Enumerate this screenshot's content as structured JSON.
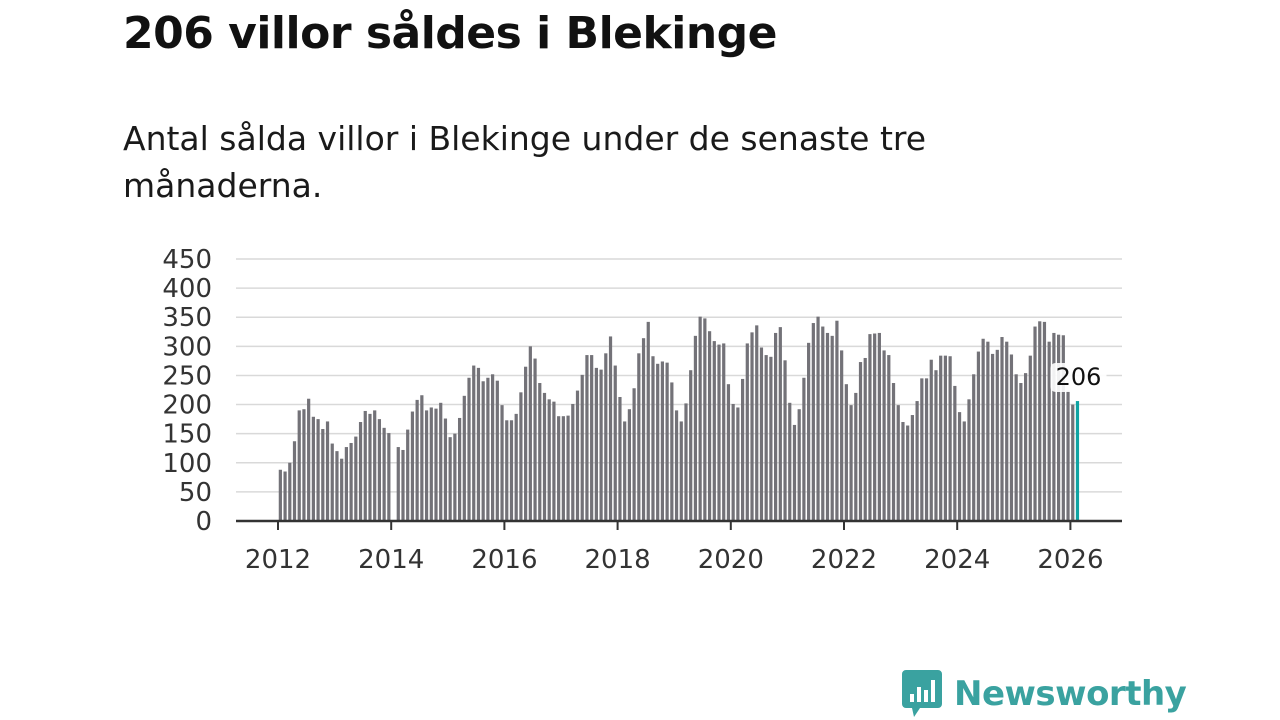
{
  "title": "206 villor såldes i Blekinge",
  "subtitle": "Antal sålda villor i Blekinge under de senaste tre månaderna.",
  "brand": {
    "name": "Newsworthy",
    "icon": "newsworthy-logo-icon",
    "color": "#3aa2a0"
  },
  "colors": {
    "bar": "#737278",
    "highlight": "#0fa3a3",
    "grid": "#d9d9d9",
    "axis": "#333333"
  },
  "chart_data": {
    "type": "bar",
    "title": "206 villor såldes i Blekinge",
    "xlabel": "",
    "ylabel": "",
    "ylim": [
      0,
      450
    ],
    "yticks": [
      "0",
      "50",
      "100",
      "150",
      "200",
      "250",
      "300",
      "350",
      "400",
      "450"
    ],
    "xticks": [
      "2012",
      "2014",
      "2016",
      "2018",
      "2020",
      "2022",
      "2024",
      "2026"
    ],
    "grid": true,
    "start": "2012-01",
    "frequency": "monthly",
    "values": [
      88,
      85,
      100,
      137,
      190,
      192,
      210,
      179,
      175,
      158,
      171,
      133,
      120,
      107,
      127,
      134,
      145,
      170,
      189,
      184,
      190,
      175,
      160,
      151,
      null,
      127,
      122,
      157,
      188,
      208,
      216,
      190,
      195,
      193,
      203,
      176,
      144,
      150,
      177,
      215,
      246,
      267,
      263,
      240,
      246,
      252,
      241,
      199,
      173,
      173,
      184,
      221,
      265,
      300,
      279,
      237,
      220,
      209,
      205,
      180,
      180,
      181,
      201,
      224,
      251,
      285,
      285,
      263,
      260,
      288,
      317,
      267,
      213,
      171,
      192,
      228,
      288,
      314,
      342,
      283,
      270,
      274,
      272,
      238,
      190,
      171,
      202,
      259,
      318,
      351,
      348,
      326,
      309,
      303,
      305,
      235,
      201,
      195,
      244,
      305,
      324,
      336,
      298,
      285,
      282,
      323,
      333,
      276,
      203,
      165,
      192,
      246,
      306,
      340,
      351,
      334,
      323,
      318,
      344,
      293,
      235,
      199,
      220,
      273,
      280,
      321,
      322,
      323,
      293,
      285,
      237,
      199,
      170,
      164,
      182,
      206,
      245,
      245,
      277,
      259,
      284,
      284,
      283,
      232,
      187,
      171,
      209,
      252,
      291,
      313,
      308,
      287,
      294,
      316,
      308,
      286,
      252,
      237,
      254,
      284,
      334,
      343,
      342,
      308,
      323,
      320,
      319,
      224,
      200,
      206
    ],
    "highlight_last": 1,
    "annotation": {
      "text": "206",
      "target": "last"
    }
  }
}
